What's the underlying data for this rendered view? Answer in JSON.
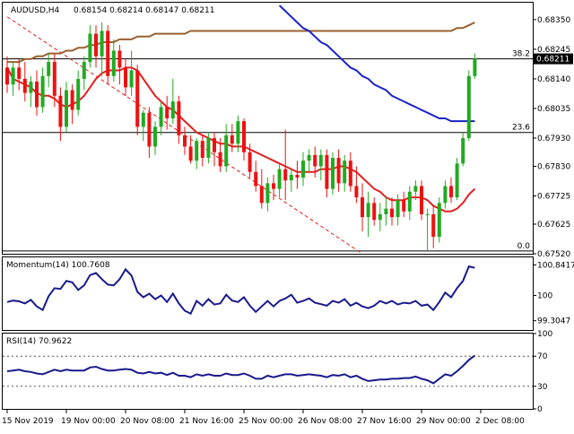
{
  "header": {
    "symbol": "AUDUSD,H4",
    "ohlc": "0.68154 0.68214 0.68147 0.68211"
  },
  "colors": {
    "background": "#ffffff",
    "bull_candle": "#22aa22",
    "bear_candle": "#ee1111",
    "ma_fast": "#e02020",
    "ma_mid": "#1a24c8",
    "ma_slow": "#9a6030",
    "trendline": "#e02020",
    "oscillator": "#1a1a8c",
    "level_line": "#000000",
    "current_price_bg": "#000000",
    "current_price_fg": "#ffffff"
  },
  "chart_data": [
    {
      "type": "candlestick",
      "title": "AUDUSD,H4",
      "ylim": [
        0.6752,
        0.6841
      ],
      "y_ticks": [
        "0.68350",
        "0.68245",
        "0.68140",
        "0.68035",
        "0.67930",
        "0.67830",
        "0.67725",
        "0.67625",
        "0.67520"
      ],
      "y_tick_values": [
        0.6835,
        0.68245,
        0.6814,
        0.68035,
        0.6793,
        0.6783,
        0.67725,
        0.67625,
        0.6752
      ],
      "x_ticks": [
        "15 Nov 2019",
        "19 Nov 00:00",
        "20 Nov 08:00",
        "21 Nov 16:00",
        "25 Nov 00:00",
        "26 Nov 08:00",
        "27 Nov 16:00",
        "29 Nov 00:00",
        "2 Dec 08:00"
      ],
      "x_tick_index": [
        0,
        10,
        20,
        30,
        40,
        50,
        60,
        70,
        80
      ],
      "current_price": "0.68211",
      "current_price_value": 0.68211,
      "fib_levels": [
        {
          "label": "38.2",
          "value": 0.68211
        },
        {
          "label": "23.6",
          "value": 0.6795
        },
        {
          "label": "0.0",
          "value": 0.6753
        }
      ],
      "candles": [
        {
          "o": 0.6818,
          "h": 0.6822,
          "l": 0.6809,
          "c": 0.6812
        },
        {
          "o": 0.6812,
          "h": 0.682,
          "l": 0.6808,
          "c": 0.6818
        },
        {
          "o": 0.6818,
          "h": 0.6821,
          "l": 0.681,
          "c": 0.6814
        },
        {
          "o": 0.6814,
          "h": 0.682,
          "l": 0.6806,
          "c": 0.6809
        },
        {
          "o": 0.6809,
          "h": 0.6815,
          "l": 0.6804,
          "c": 0.6813
        },
        {
          "o": 0.6813,
          "h": 0.6817,
          "l": 0.6801,
          "c": 0.6804
        },
        {
          "o": 0.6804,
          "h": 0.6818,
          "l": 0.6802,
          "c": 0.6815
        },
        {
          "o": 0.6815,
          "h": 0.6823,
          "l": 0.6811,
          "c": 0.682
        },
        {
          "o": 0.682,
          "h": 0.6823,
          "l": 0.6804,
          "c": 0.6808
        },
        {
          "o": 0.6808,
          "h": 0.6811,
          "l": 0.6792,
          "c": 0.6797
        },
        {
          "o": 0.6797,
          "h": 0.6813,
          "l": 0.6795,
          "c": 0.681
        },
        {
          "o": 0.681,
          "h": 0.6812,
          "l": 0.6798,
          "c": 0.6803
        },
        {
          "o": 0.6803,
          "h": 0.6817,
          "l": 0.6801,
          "c": 0.6814
        },
        {
          "o": 0.6814,
          "h": 0.6822,
          "l": 0.681,
          "c": 0.682
        },
        {
          "o": 0.682,
          "h": 0.6833,
          "l": 0.6818,
          "c": 0.683
        },
        {
          "o": 0.683,
          "h": 0.6833,
          "l": 0.6818,
          "c": 0.6822
        },
        {
          "o": 0.6822,
          "h": 0.6834,
          "l": 0.6815,
          "c": 0.6831
        },
        {
          "o": 0.6831,
          "h": 0.6833,
          "l": 0.6812,
          "c": 0.6815
        },
        {
          "o": 0.6815,
          "h": 0.6828,
          "l": 0.6813,
          "c": 0.6824
        },
        {
          "o": 0.6824,
          "h": 0.6826,
          "l": 0.6812,
          "c": 0.6818
        },
        {
          "o": 0.6818,
          "h": 0.6821,
          "l": 0.6808,
          "c": 0.6811
        },
        {
          "o": 0.6811,
          "h": 0.6824,
          "l": 0.6808,
          "c": 0.6817
        },
        {
          "o": 0.6817,
          "h": 0.6819,
          "l": 0.6794,
          "c": 0.6797
        },
        {
          "o": 0.6797,
          "h": 0.6803,
          "l": 0.6792,
          "c": 0.6802
        },
        {
          "o": 0.6802,
          "h": 0.6804,
          "l": 0.6786,
          "c": 0.679
        },
        {
          "o": 0.679,
          "h": 0.6799,
          "l": 0.6787,
          "c": 0.6797
        },
        {
          "o": 0.6797,
          "h": 0.6806,
          "l": 0.6794,
          "c": 0.6804
        },
        {
          "o": 0.6804,
          "h": 0.6808,
          "l": 0.6796,
          "c": 0.68
        },
        {
          "o": 0.68,
          "h": 0.6814,
          "l": 0.6798,
          "c": 0.6806
        },
        {
          "o": 0.6806,
          "h": 0.6808,
          "l": 0.6791,
          "c": 0.6794
        },
        {
          "o": 0.6794,
          "h": 0.6797,
          "l": 0.6787,
          "c": 0.679
        },
        {
          "o": 0.679,
          "h": 0.6794,
          "l": 0.6784,
          "c": 0.6785
        },
        {
          "o": 0.6785,
          "h": 0.6793,
          "l": 0.6782,
          "c": 0.6792
        },
        {
          "o": 0.6792,
          "h": 0.6794,
          "l": 0.6783,
          "c": 0.6786
        },
        {
          "o": 0.6786,
          "h": 0.6795,
          "l": 0.6784,
          "c": 0.6793
        },
        {
          "o": 0.6793,
          "h": 0.6795,
          "l": 0.6783,
          "c": 0.6788
        },
        {
          "o": 0.6788,
          "h": 0.6793,
          "l": 0.6781,
          "c": 0.6783
        },
        {
          "o": 0.6783,
          "h": 0.6798,
          "l": 0.6781,
          "c": 0.6794
        },
        {
          "o": 0.6794,
          "h": 0.6798,
          "l": 0.6788,
          "c": 0.6791
        },
        {
          "o": 0.6791,
          "h": 0.6801,
          "l": 0.6788,
          "c": 0.6799
        },
        {
          "o": 0.6799,
          "h": 0.68,
          "l": 0.6785,
          "c": 0.6788
        },
        {
          "o": 0.6788,
          "h": 0.6791,
          "l": 0.6779,
          "c": 0.6781
        },
        {
          "o": 0.6781,
          "h": 0.6785,
          "l": 0.6774,
          "c": 0.6776
        },
        {
          "o": 0.6776,
          "h": 0.6782,
          "l": 0.6768,
          "c": 0.677
        },
        {
          "o": 0.677,
          "h": 0.6779,
          "l": 0.6767,
          "c": 0.6777
        },
        {
          "o": 0.6777,
          "h": 0.678,
          "l": 0.6771,
          "c": 0.6775
        },
        {
          "o": 0.6775,
          "h": 0.6784,
          "l": 0.6772,
          "c": 0.6782
        },
        {
          "o": 0.6782,
          "h": 0.6796,
          "l": 0.6771,
          "c": 0.6778
        },
        {
          "o": 0.6778,
          "h": 0.6782,
          "l": 0.6774,
          "c": 0.678
        },
        {
          "o": 0.678,
          "h": 0.6785,
          "l": 0.6775,
          "c": 0.6779
        },
        {
          "o": 0.6779,
          "h": 0.6788,
          "l": 0.6776,
          "c": 0.6785
        },
        {
          "o": 0.6785,
          "h": 0.6789,
          "l": 0.6781,
          "c": 0.6787
        },
        {
          "o": 0.6787,
          "h": 0.679,
          "l": 0.6779,
          "c": 0.6783
        },
        {
          "o": 0.6783,
          "h": 0.6789,
          "l": 0.6778,
          "c": 0.6787
        },
        {
          "o": 0.6787,
          "h": 0.6789,
          "l": 0.6772,
          "c": 0.6775
        },
        {
          "o": 0.6775,
          "h": 0.6788,
          "l": 0.6773,
          "c": 0.6786
        },
        {
          "o": 0.6786,
          "h": 0.6789,
          "l": 0.6774,
          "c": 0.6777
        },
        {
          "o": 0.6777,
          "h": 0.6787,
          "l": 0.6774,
          "c": 0.6785
        },
        {
          "o": 0.6785,
          "h": 0.6788,
          "l": 0.6774,
          "c": 0.6776
        },
        {
          "o": 0.6776,
          "h": 0.6783,
          "l": 0.677,
          "c": 0.6772
        },
        {
          "o": 0.6772,
          "h": 0.6777,
          "l": 0.676,
          "c": 0.6765
        },
        {
          "o": 0.6765,
          "h": 0.6774,
          "l": 0.6758,
          "c": 0.677
        },
        {
          "o": 0.677,
          "h": 0.6772,
          "l": 0.6762,
          "c": 0.6764
        },
        {
          "o": 0.6764,
          "h": 0.677,
          "l": 0.676,
          "c": 0.6766
        },
        {
          "o": 0.6766,
          "h": 0.6772,
          "l": 0.6762,
          "c": 0.6768
        },
        {
          "o": 0.6768,
          "h": 0.6772,
          "l": 0.6762,
          "c": 0.6765
        },
        {
          "o": 0.6765,
          "h": 0.6773,
          "l": 0.6762,
          "c": 0.6771
        },
        {
          "o": 0.6771,
          "h": 0.6774,
          "l": 0.6765,
          "c": 0.6767
        },
        {
          "o": 0.6767,
          "h": 0.6776,
          "l": 0.6764,
          "c": 0.6774
        },
        {
          "o": 0.6774,
          "h": 0.6778,
          "l": 0.6771,
          "c": 0.6776
        },
        {
          "o": 0.6776,
          "h": 0.6778,
          "l": 0.6764,
          "c": 0.6766
        },
        {
          "o": 0.6766,
          "h": 0.6768,
          "l": 0.6753,
          "c": 0.6766
        },
        {
          "o": 0.6766,
          "h": 0.6769,
          "l": 0.6754,
          "c": 0.6758
        },
        {
          "o": 0.6758,
          "h": 0.6772,
          "l": 0.6756,
          "c": 0.677
        },
        {
          "o": 0.677,
          "h": 0.6778,
          "l": 0.6768,
          "c": 0.6776
        },
        {
          "o": 0.6776,
          "h": 0.6779,
          "l": 0.677,
          "c": 0.6772
        },
        {
          "o": 0.6772,
          "h": 0.6786,
          "l": 0.6771,
          "c": 0.6784
        },
        {
          "o": 0.6784,
          "h": 0.6795,
          "l": 0.6783,
          "c": 0.6793
        },
        {
          "o": 0.6793,
          "h": 0.6817,
          "l": 0.6792,
          "c": 0.6815
        },
        {
          "o": 0.6815,
          "h": 0.6823,
          "l": 0.6814,
          "c": 0.68211
        }
      ],
      "ma_fast": [
        0.6818,
        0.6814,
        0.6813,
        0.6812,
        0.6811,
        0.6809,
        0.6808,
        0.6808,
        0.6807,
        0.6805,
        0.6804,
        0.6805,
        0.6806,
        0.6808,
        0.6811,
        0.6814,
        0.6816,
        0.6817,
        0.6817,
        0.6817,
        0.6818,
        0.6818,
        0.6817,
        0.6814,
        0.6811,
        0.6808,
        0.6806,
        0.6804,
        0.6803,
        0.6801,
        0.6799,
        0.6797,
        0.6795,
        0.6794,
        0.6793,
        0.6792,
        0.6791,
        0.6791,
        0.679,
        0.679,
        0.679,
        0.6789,
        0.6788,
        0.6787,
        0.6786,
        0.6785,
        0.6784,
        0.6783,
        0.6782,
        0.6781,
        0.6781,
        0.6781,
        0.6781,
        0.6782,
        0.6782,
        0.6782,
        0.6783,
        0.6783,
        0.6782,
        0.6781,
        0.6779,
        0.6777,
        0.6775,
        0.6774,
        0.6772,
        0.6771,
        0.6771,
        0.6771,
        0.6772,
        0.6772,
        0.6772,
        0.6771,
        0.6769,
        0.6768,
        0.6767,
        0.6767,
        0.6768,
        0.677,
        0.6773,
        0.6775
      ],
      "ma_mid": [
        null,
        null,
        null,
        null,
        null,
        null,
        null,
        null,
        null,
        null,
        null,
        null,
        null,
        null,
        null,
        null,
        null,
        null,
        null,
        null,
        null,
        null,
        null,
        null,
        null,
        null,
        null,
        null,
        null,
        null,
        null,
        null,
        null,
        null,
        null,
        null,
        null,
        null,
        null,
        null,
        null,
        null,
        0.6851,
        0.6848,
        0.6845,
        0.6842,
        0.684,
        0.6838,
        0.6836,
        0.6834,
        0.6832,
        0.6831,
        0.6829,
        0.6827,
        0.6826,
        0.6824,
        0.6822,
        0.682,
        0.6818,
        0.6817,
        0.6815,
        0.6814,
        0.6812,
        0.6811,
        0.681,
        0.6808,
        0.6807,
        0.6806,
        0.6805,
        0.6804,
        0.6803,
        0.6802,
        0.6801,
        0.68,
        0.68,
        0.6799,
        0.6799,
        0.6799,
        0.6799,
        0.6799
      ],
      "ma_slow": [
        0.682,
        0.682,
        0.682,
        0.6821,
        0.6821,
        0.6822,
        0.6822,
        0.6823,
        0.6823,
        0.6823,
        0.6824,
        0.6824,
        0.6825,
        0.6825,
        0.6826,
        0.6826,
        0.6827,
        0.6827,
        0.6827,
        0.6828,
        0.6828,
        0.6828,
        0.6829,
        0.6829,
        0.6829,
        0.683,
        0.683,
        0.683,
        0.683,
        0.683,
        0.683,
        0.6831,
        0.6831,
        0.6831,
        0.6831,
        0.6831,
        0.6831,
        0.6831,
        0.6831,
        0.6831,
        0.6831,
        0.6831,
        0.6831,
        0.6831,
        0.6831,
        0.6831,
        0.6831,
        0.6831,
        0.6831,
        0.6831,
        0.6831,
        0.6831,
        0.6831,
        0.6831,
        0.6831,
        0.6831,
        0.6831,
        0.6831,
        0.6831,
        0.6831,
        0.6831,
        0.6831,
        0.6831,
        0.6831,
        0.6831,
        0.6831,
        0.6831,
        0.6831,
        0.6831,
        0.6831,
        0.6831,
        0.6831,
        0.6831,
        0.6831,
        0.6831,
        0.6831,
        0.6832,
        0.6832,
        0.6833,
        0.6834
      ],
      "trendline": [
        {
          "i": 0,
          "y": 0.6836
        },
        {
          "i": 60,
          "y": 0.6752
        }
      ]
    },
    {
      "type": "line",
      "title": "Momentum(14) 100.7608",
      "ylim": [
        99.05,
        101.05
      ],
      "y_ticks": [
        "100.8417",
        "100",
        "99.3047"
      ],
      "y_tick_values": [
        100.8417,
        100.0,
        99.3047
      ],
      "series": [
        {
          "values": [
            99.82,
            99.86,
            99.84,
            99.78,
            99.88,
            99.7,
            99.6,
            99.98,
            100.2,
            100.18,
            100.4,
            100.36,
            100.15,
            100.28,
            100.56,
            100.62,
            100.45,
            100.3,
            100.28,
            100.45,
            100.72,
            100.55,
            100.1,
            99.95,
            100.05,
            99.9,
            100.0,
            99.82,
            100.05,
            99.78,
            99.58,
            99.5,
            99.85,
            99.72,
            99.9,
            99.75,
            99.78,
            100.02,
            99.86,
            99.82,
            99.95,
            99.72,
            99.55,
            99.7,
            99.85,
            99.7,
            99.85,
            99.92,
            100.02,
            99.8,
            99.85,
            99.92,
            99.8,
            99.76,
            99.72,
            99.85,
            99.8,
            99.9,
            99.72,
            99.8,
            99.7,
            99.65,
            99.72,
            99.85,
            99.78,
            99.85,
            99.75,
            99.8,
            99.78,
            99.85,
            99.72,
            99.75,
            99.6,
            99.82,
            100.08,
            99.95,
            100.2,
            100.4,
            100.8,
            100.76
          ]
        }
      ]
    },
    {
      "type": "line",
      "title": "RSI(14) 70.9622",
      "ylim": [
        0,
        100
      ],
      "y_ticks": [
        "100",
        "70",
        "30",
        "0"
      ],
      "y_tick_values": [
        100,
        70,
        30,
        0
      ],
      "series": [
        {
          "values": [
            50,
            51,
            52,
            50,
            49,
            47,
            46,
            49,
            52,
            50,
            52,
            51,
            51,
            51,
            55,
            56,
            53,
            51,
            51,
            52,
            53,
            52,
            48,
            47,
            49,
            47,
            48,
            45,
            48,
            44,
            44,
            42,
            46,
            44,
            46,
            44,
            44,
            47,
            45,
            45,
            47,
            44,
            40,
            40,
            44,
            42,
            44,
            46,
            46,
            44,
            45,
            46,
            45,
            44,
            42,
            45,
            44,
            46,
            42,
            44,
            40,
            37,
            38,
            39,
            39,
            40,
            40,
            41,
            41,
            43,
            40,
            38,
            34,
            40,
            46,
            44,
            50,
            57,
            65,
            71
          ]
        }
      ]
    }
  ]
}
